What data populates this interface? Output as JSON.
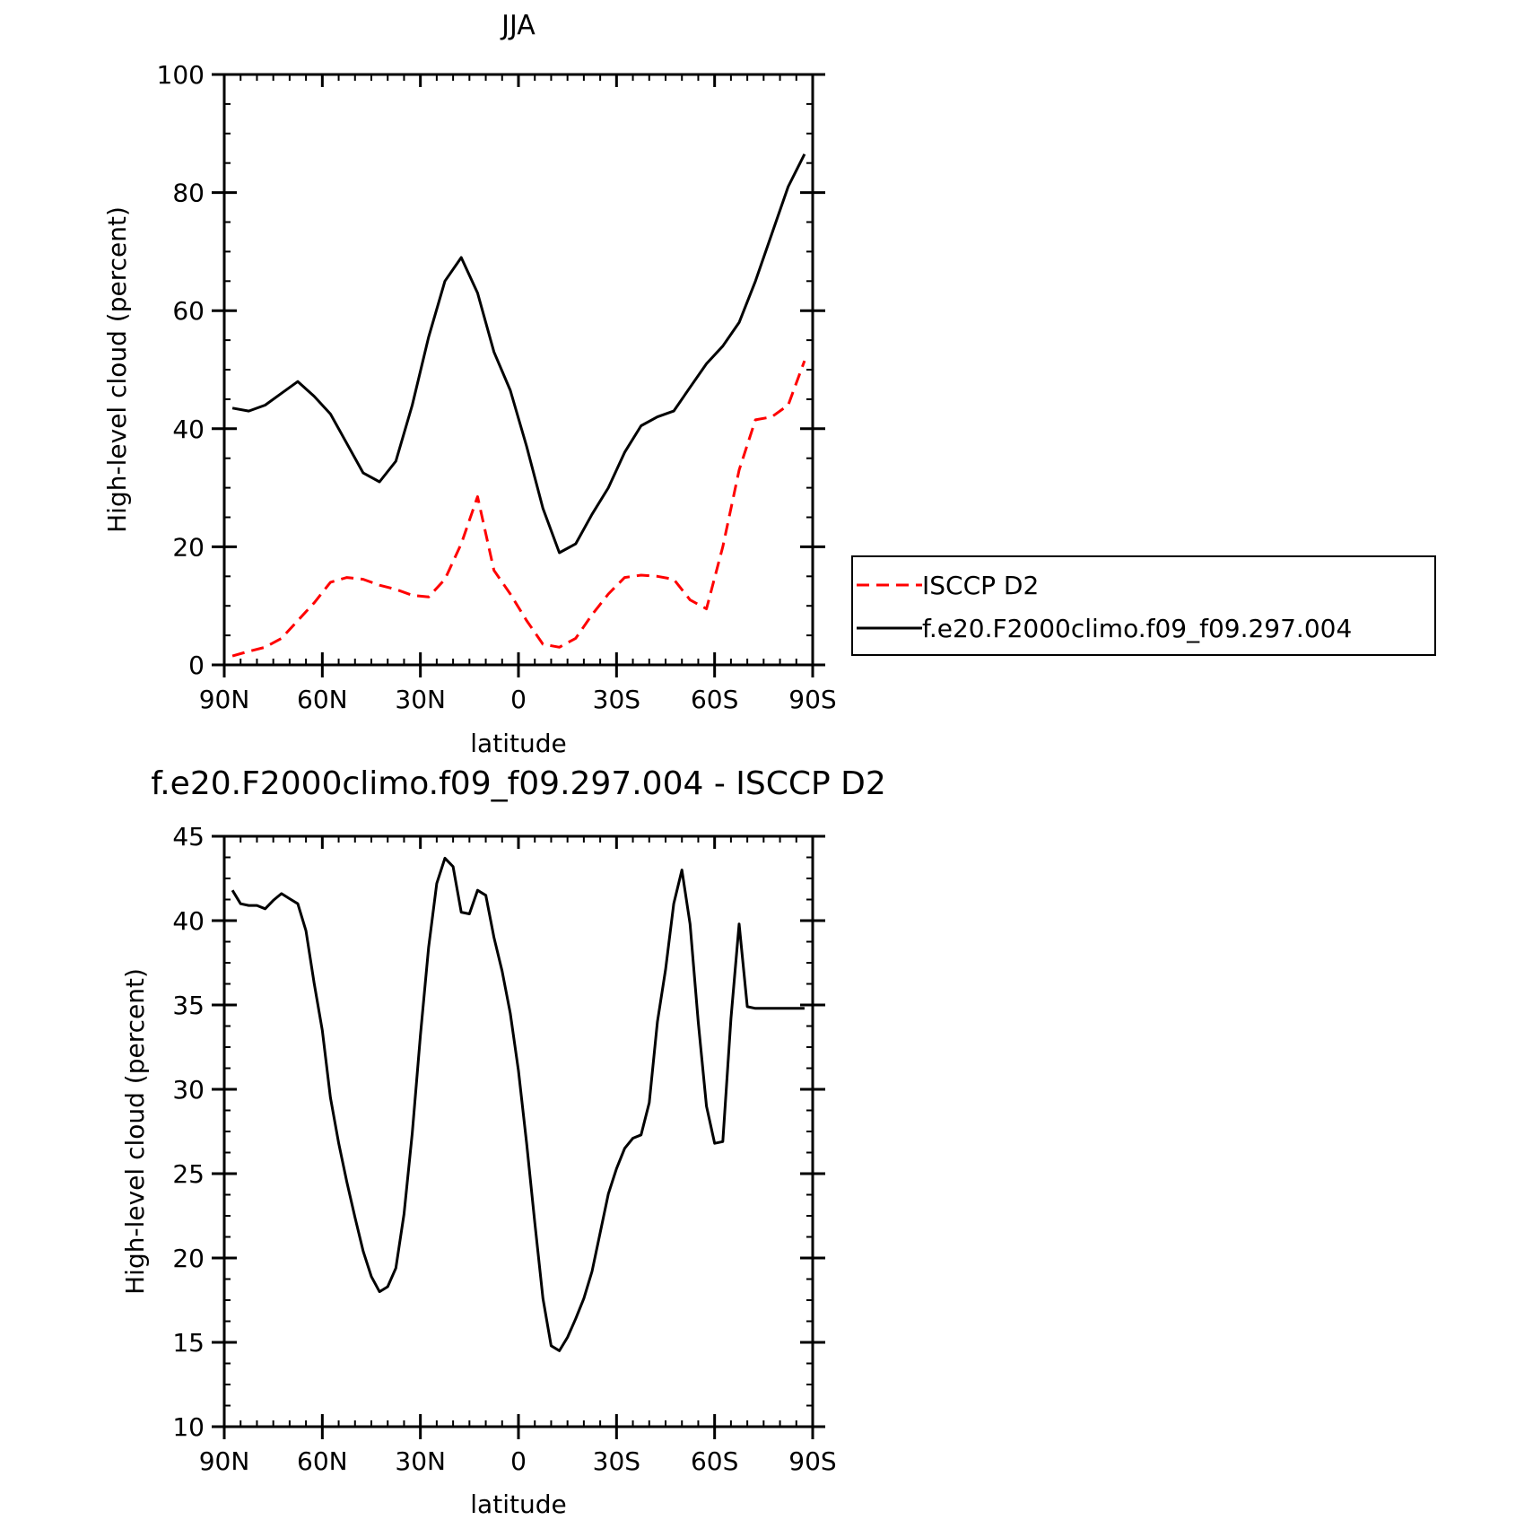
{
  "chart_data": [
    {
      "type": "line",
      "title": "JJA",
      "xlabel": "latitude",
      "ylabel": "High-level cloud (percent)",
      "xlim": [
        90,
        -90
      ],
      "ylim": [
        0,
        100
      ],
      "xticks": [
        90,
        60,
        30,
        0,
        -30,
        -60,
        -90
      ],
      "xtick_labels": [
        "90N",
        "60N",
        "30N",
        "0",
        "30S",
        "60S",
        "90S"
      ],
      "yticks": [
        0,
        20,
        40,
        60,
        80,
        100
      ],
      "ytick_labels": [
        "0",
        "20",
        "40",
        "60",
        "80",
        "100"
      ],
      "legend_position": "right",
      "series": [
        {
          "name": "ISCCP D2",
          "color": "#ff0000",
          "dash": "dashed",
          "x": [
            87.5,
            82.5,
            77.5,
            72.5,
            67.5,
            62.5,
            57.5,
            52.5,
            47.5,
            42.5,
            37.5,
            32.5,
            27.5,
            22.5,
            17.5,
            12.5,
            7.5,
            2.5,
            -2.5,
            -7.5,
            -12.5,
            -17.5,
            -22.5,
            -27.5,
            -32.5,
            -37.5,
            -42.5,
            -47.5,
            -52.5,
            -57.5,
            -62.5,
            -67.5,
            -72.5,
            -77.5,
            -82.5,
            -87.5
          ],
          "y": [
            1.5,
            2.3,
            3.0,
            4.5,
            7.5,
            10.5,
            14.0,
            14.8,
            14.5,
            13.5,
            12.8,
            11.8,
            11.5,
            14.5,
            20.5,
            28.5,
            16.0,
            12.0,
            7.5,
            3.5,
            3.0,
            4.5,
            8.5,
            12.0,
            14.8,
            15.2,
            15.0,
            14.5,
            11.0,
            9.5,
            20.0,
            33.0,
            41.5,
            42.0,
            44.0,
            51.5
          ],
          "line_dash": "dashed"
        },
        {
          "name": "f.e20.F2000climo.f09_f09.297.004",
          "color": "#000000",
          "dash": "solid",
          "x": [
            87.5,
            82.5,
            77.5,
            72.5,
            67.5,
            62.5,
            57.5,
            52.5,
            47.5,
            42.5,
            37.5,
            32.5,
            27.5,
            22.5,
            17.5,
            12.5,
            7.5,
            2.5,
            -2.5,
            -7.5,
            -12.5,
            -17.5,
            -22.5,
            -27.5,
            -32.5,
            -37.5,
            -42.5,
            -47.5,
            -52.5,
            -57.5,
            -62.5,
            -67.5,
            -72.5,
            -77.5,
            -82.5,
            -87.5
          ],
          "y": [
            43.5,
            43.0,
            44.0,
            46.0,
            48.0,
            45.5,
            42.5,
            37.5,
            32.5,
            31.0,
            34.5,
            44.0,
            55.5,
            65.0,
            69.0,
            63.0,
            53.0,
            46.5,
            37.0,
            26.5,
            19.0,
            20.5,
            25.5,
            30.0,
            36.0,
            40.5,
            42.0,
            43.0,
            47.0,
            51.0,
            54.0,
            58.0,
            65.0,
            73.0,
            81.0,
            86.5
          ],
          "line_dash": "solid"
        }
      ]
    },
    {
      "type": "line",
      "title": "f.e20.F2000climo.f09_f09.297.004 - ISCCP D2",
      "xlabel": "latitude",
      "ylabel": "High-level cloud (percent)",
      "xlim": [
        90,
        -90
      ],
      "ylim": [
        10,
        45
      ],
      "xticks": [
        90,
        60,
        30,
        0,
        -30,
        -60,
        -90
      ],
      "xtick_labels": [
        "90N",
        "60N",
        "30N",
        "0",
        "30S",
        "60S",
        "90S"
      ],
      "yticks": [
        10,
        15,
        20,
        25,
        30,
        35,
        40,
        45
      ],
      "ytick_labels": [
        "10",
        "15",
        "20",
        "25",
        "30",
        "35",
        "40",
        "45"
      ],
      "series": [
        {
          "color": "#000000",
          "dash": "solid",
          "x": [
            87.5,
            85,
            82.5,
            80,
            77.5,
            75,
            72.5,
            70,
            67.5,
            65,
            62.5,
            60,
            57.5,
            55,
            52.5,
            50,
            47.5,
            45,
            42.5,
            40,
            37.5,
            35,
            32.5,
            30,
            27.5,
            25,
            22.5,
            20,
            17.5,
            15,
            12.5,
            10,
            7.5,
            5,
            2.5,
            0,
            -2.5,
            -5,
            -7.5,
            -10,
            -12.5,
            -15,
            -17.5,
            -20,
            -22.5,
            -25,
            -27.5,
            -30,
            -32.5,
            -35,
            -37.5,
            -40,
            -42.5,
            -45,
            -47.5,
            -50,
            -52.5,
            -55,
            -57.5,
            -60,
            -62.5,
            -65,
            -67.5,
            -70,
            -72.5,
            -75,
            -77.5,
            -80,
            -82.5,
            -85,
            -87.5
          ],
          "y": [
            41.8,
            41.0,
            40.9,
            40.9,
            40.7,
            41.2,
            41.6,
            41.3,
            41.0,
            39.4,
            36.3,
            33.5,
            29.5,
            26.8,
            24.5,
            22.4,
            20.4,
            18.9,
            18.0,
            18.3,
            19.4,
            22.6,
            27.4,
            33.2,
            38.4,
            42.2,
            43.7,
            43.2,
            40.5,
            40.4,
            41.8,
            41.5,
            39.0,
            37.0,
            34.5,
            31.1,
            26.8,
            22.1,
            17.6,
            14.8,
            14.5,
            15.3,
            16.4,
            17.6,
            19.2,
            21.5,
            23.8,
            25.3,
            26.5,
            27.1,
            27.3,
            29.2,
            34.0,
            37.1,
            41.0,
            43.0,
            39.8,
            34.0,
            29.0,
            26.8,
            26.9,
            34.2,
            39.8,
            34.9,
            34.8,
            34.8,
            34.8,
            34.8,
            34.8,
            34.8,
            34.8
          ]
        }
      ]
    }
  ]
}
